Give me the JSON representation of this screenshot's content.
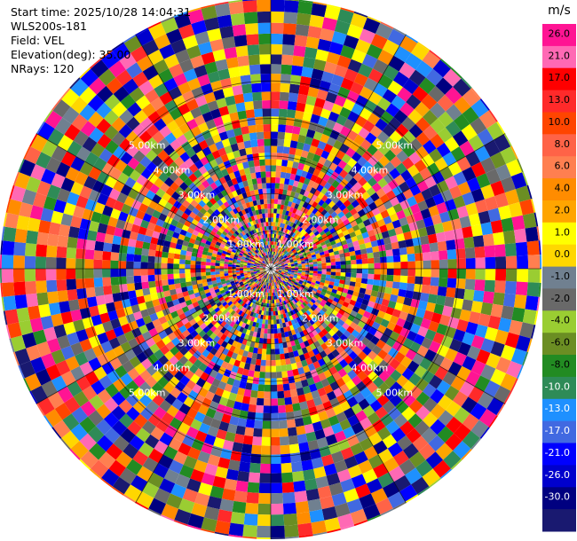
{
  "header": {
    "start_time": "Start time: 2025/10/28 14:04:31",
    "instrument": "WLS200s-181",
    "field": "Field: VEL",
    "elevation": "Elevation(deg): 35.00",
    "nrays": "NRays: 120"
  },
  "colorbar": {
    "unit": "m/s",
    "labels": [
      "26.0",
      "21.0",
      "17.0",
      "13.0",
      "10.0",
      "8.0",
      "6.0",
      "4.0",
      "2.0",
      "1.0",
      "0.0",
      "-1.0",
      "-2.0",
      "-4.0",
      "-6.0",
      "-8.0",
      "-10.0",
      "-13.0",
      "-17.0",
      "-21.0",
      "-26.0",
      "-30.0"
    ],
    "colors": [
      "#ff1493",
      "#ff69b4",
      "#ff0000",
      "#ff2a2a",
      "#ff4500",
      "#ff6347",
      "#ff7f50",
      "#ff8c00",
      "#ffa500",
      "#ffff00",
      "#ffd700",
      "#708090",
      "#696969",
      "#9acd32",
      "#6b8e23",
      "#228b22",
      "#2e8b57",
      "#1e90ff",
      "#4169e1",
      "#0000ff",
      "#0000cd",
      "#000080",
      "#191970"
    ]
  },
  "chart_data": {
    "type": "heatmap",
    "subtype": "polar-ppi",
    "field": "VEL",
    "units": "m/s",
    "vmin": -30,
    "vmax": 30,
    "nrays": 120,
    "range_rings_km": [
      "1.00km",
      "2.00km",
      "3.00km",
      "4.00km",
      "5.00km"
    ],
    "range_ring_values_km": [
      1,
      2,
      3,
      4,
      5
    ],
    "spokes_deg": [
      0,
      30,
      60,
      90,
      120,
      150,
      180,
      210,
      240,
      270,
      300,
      330
    ],
    "ring_label_directions": [
      "NW",
      "NE",
      "SW",
      "SE"
    ],
    "max_range_km": 7.2,
    "elevation_deg": 35.0
  }
}
